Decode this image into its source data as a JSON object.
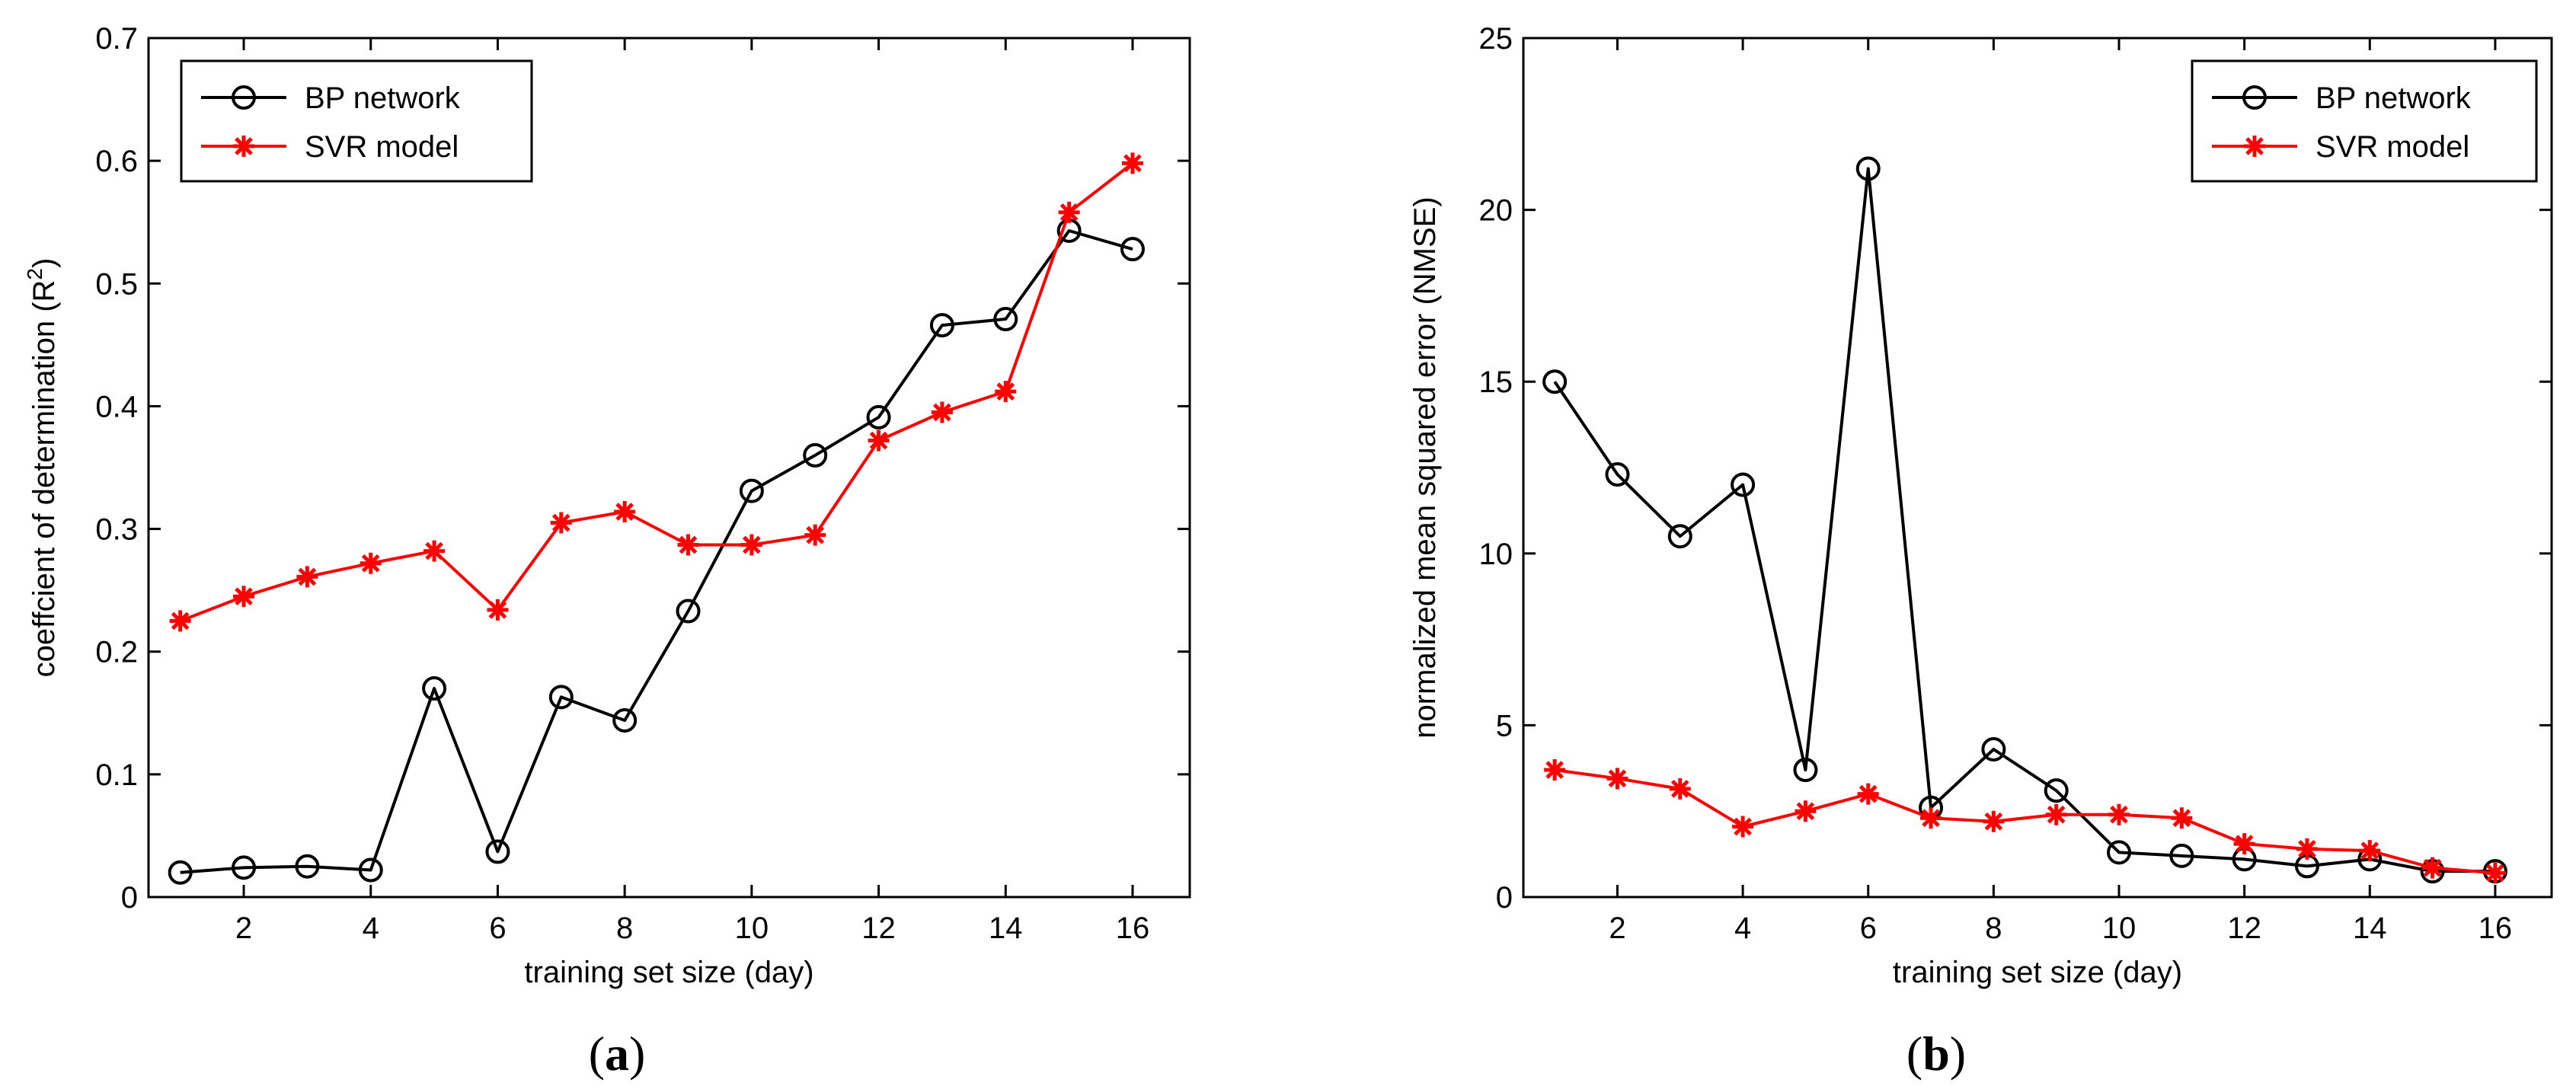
{
  "chart_data": [
    {
      "type": "line",
      "panel_label": "a",
      "xlabel": "training set size (day)",
      "ylabel_main": "coeffcient of determination (R",
      "ylabel_sup": "2",
      "ylabel_end": ")",
      "xlim": [
        0.5,
        16.9
      ],
      "ylim": [
        0,
        0.7
      ],
      "xticks": [
        2,
        4,
        6,
        8,
        10,
        12,
        14,
        16
      ],
      "yticks": [
        0,
        0.1,
        0.2,
        0.3,
        0.4,
        0.5,
        0.6,
        0.7
      ],
      "ytick_labels": [
        "0",
        "0.1",
        "0.2",
        "0.3",
        "0.4",
        "0.5",
        "0.6",
        "0.7"
      ],
      "legend_position": "top-left",
      "x": [
        1,
        2,
        3,
        4,
        5,
        6,
        7,
        8,
        9,
        10,
        11,
        12,
        13,
        14,
        15,
        16
      ],
      "series": [
        {
          "name": "BP network",
          "color": "#000000",
          "marker": "circle",
          "values": [
            0.02,
            0.024,
            0.025,
            0.022,
            0.17,
            0.037,
            0.163,
            0.144,
            0.233,
            0.331,
            0.36,
            0.391,
            0.466,
            0.471,
            0.543,
            0.528
          ]
        },
        {
          "name": "SVR model",
          "color": "#ff0000",
          "marker": "star",
          "values": [
            0.225,
            0.245,
            0.261,
            0.272,
            0.282,
            0.234,
            0.305,
            0.314,
            0.287,
            0.287,
            0.295,
            0.372,
            0.395,
            0.412,
            0.558,
            0.598
          ]
        }
      ]
    },
    {
      "type": "line",
      "panel_label": "b",
      "xlabel": "training set size (day)",
      "ylabel_main": "normalized mean squared error (NMSE)",
      "ylabel_sup": "",
      "ylabel_end": "",
      "xlim": [
        0.5,
        16.9
      ],
      "ylim": [
        0,
        25
      ],
      "xticks": [
        2,
        4,
        6,
        8,
        10,
        12,
        14,
        16
      ],
      "yticks": [
        0,
        5,
        10,
        15,
        20,
        25
      ],
      "ytick_labels": [
        "0",
        "5",
        "10",
        "15",
        "20",
        "25"
      ],
      "legend_position": "top-right",
      "x": [
        1,
        2,
        3,
        4,
        5,
        6,
        7,
        8,
        9,
        10,
        11,
        12,
        13,
        14,
        15,
        16
      ],
      "series": [
        {
          "name": "BP network",
          "color": "#000000",
          "marker": "circle",
          "values": [
            15.0,
            12.3,
            10.5,
            12.0,
            3.7,
            21.2,
            2.6,
            4.3,
            3.1,
            1.3,
            1.2,
            1.1,
            0.9,
            1.1,
            0.75,
            0.75
          ]
        },
        {
          "name": "SVR model",
          "color": "#ff0000",
          "marker": "star",
          "values": [
            3.7,
            3.45,
            3.15,
            2.05,
            2.5,
            3.0,
            2.3,
            2.2,
            2.4,
            2.4,
            2.3,
            1.55,
            1.4,
            1.35,
            0.85,
            0.7
          ]
        }
      ]
    }
  ]
}
